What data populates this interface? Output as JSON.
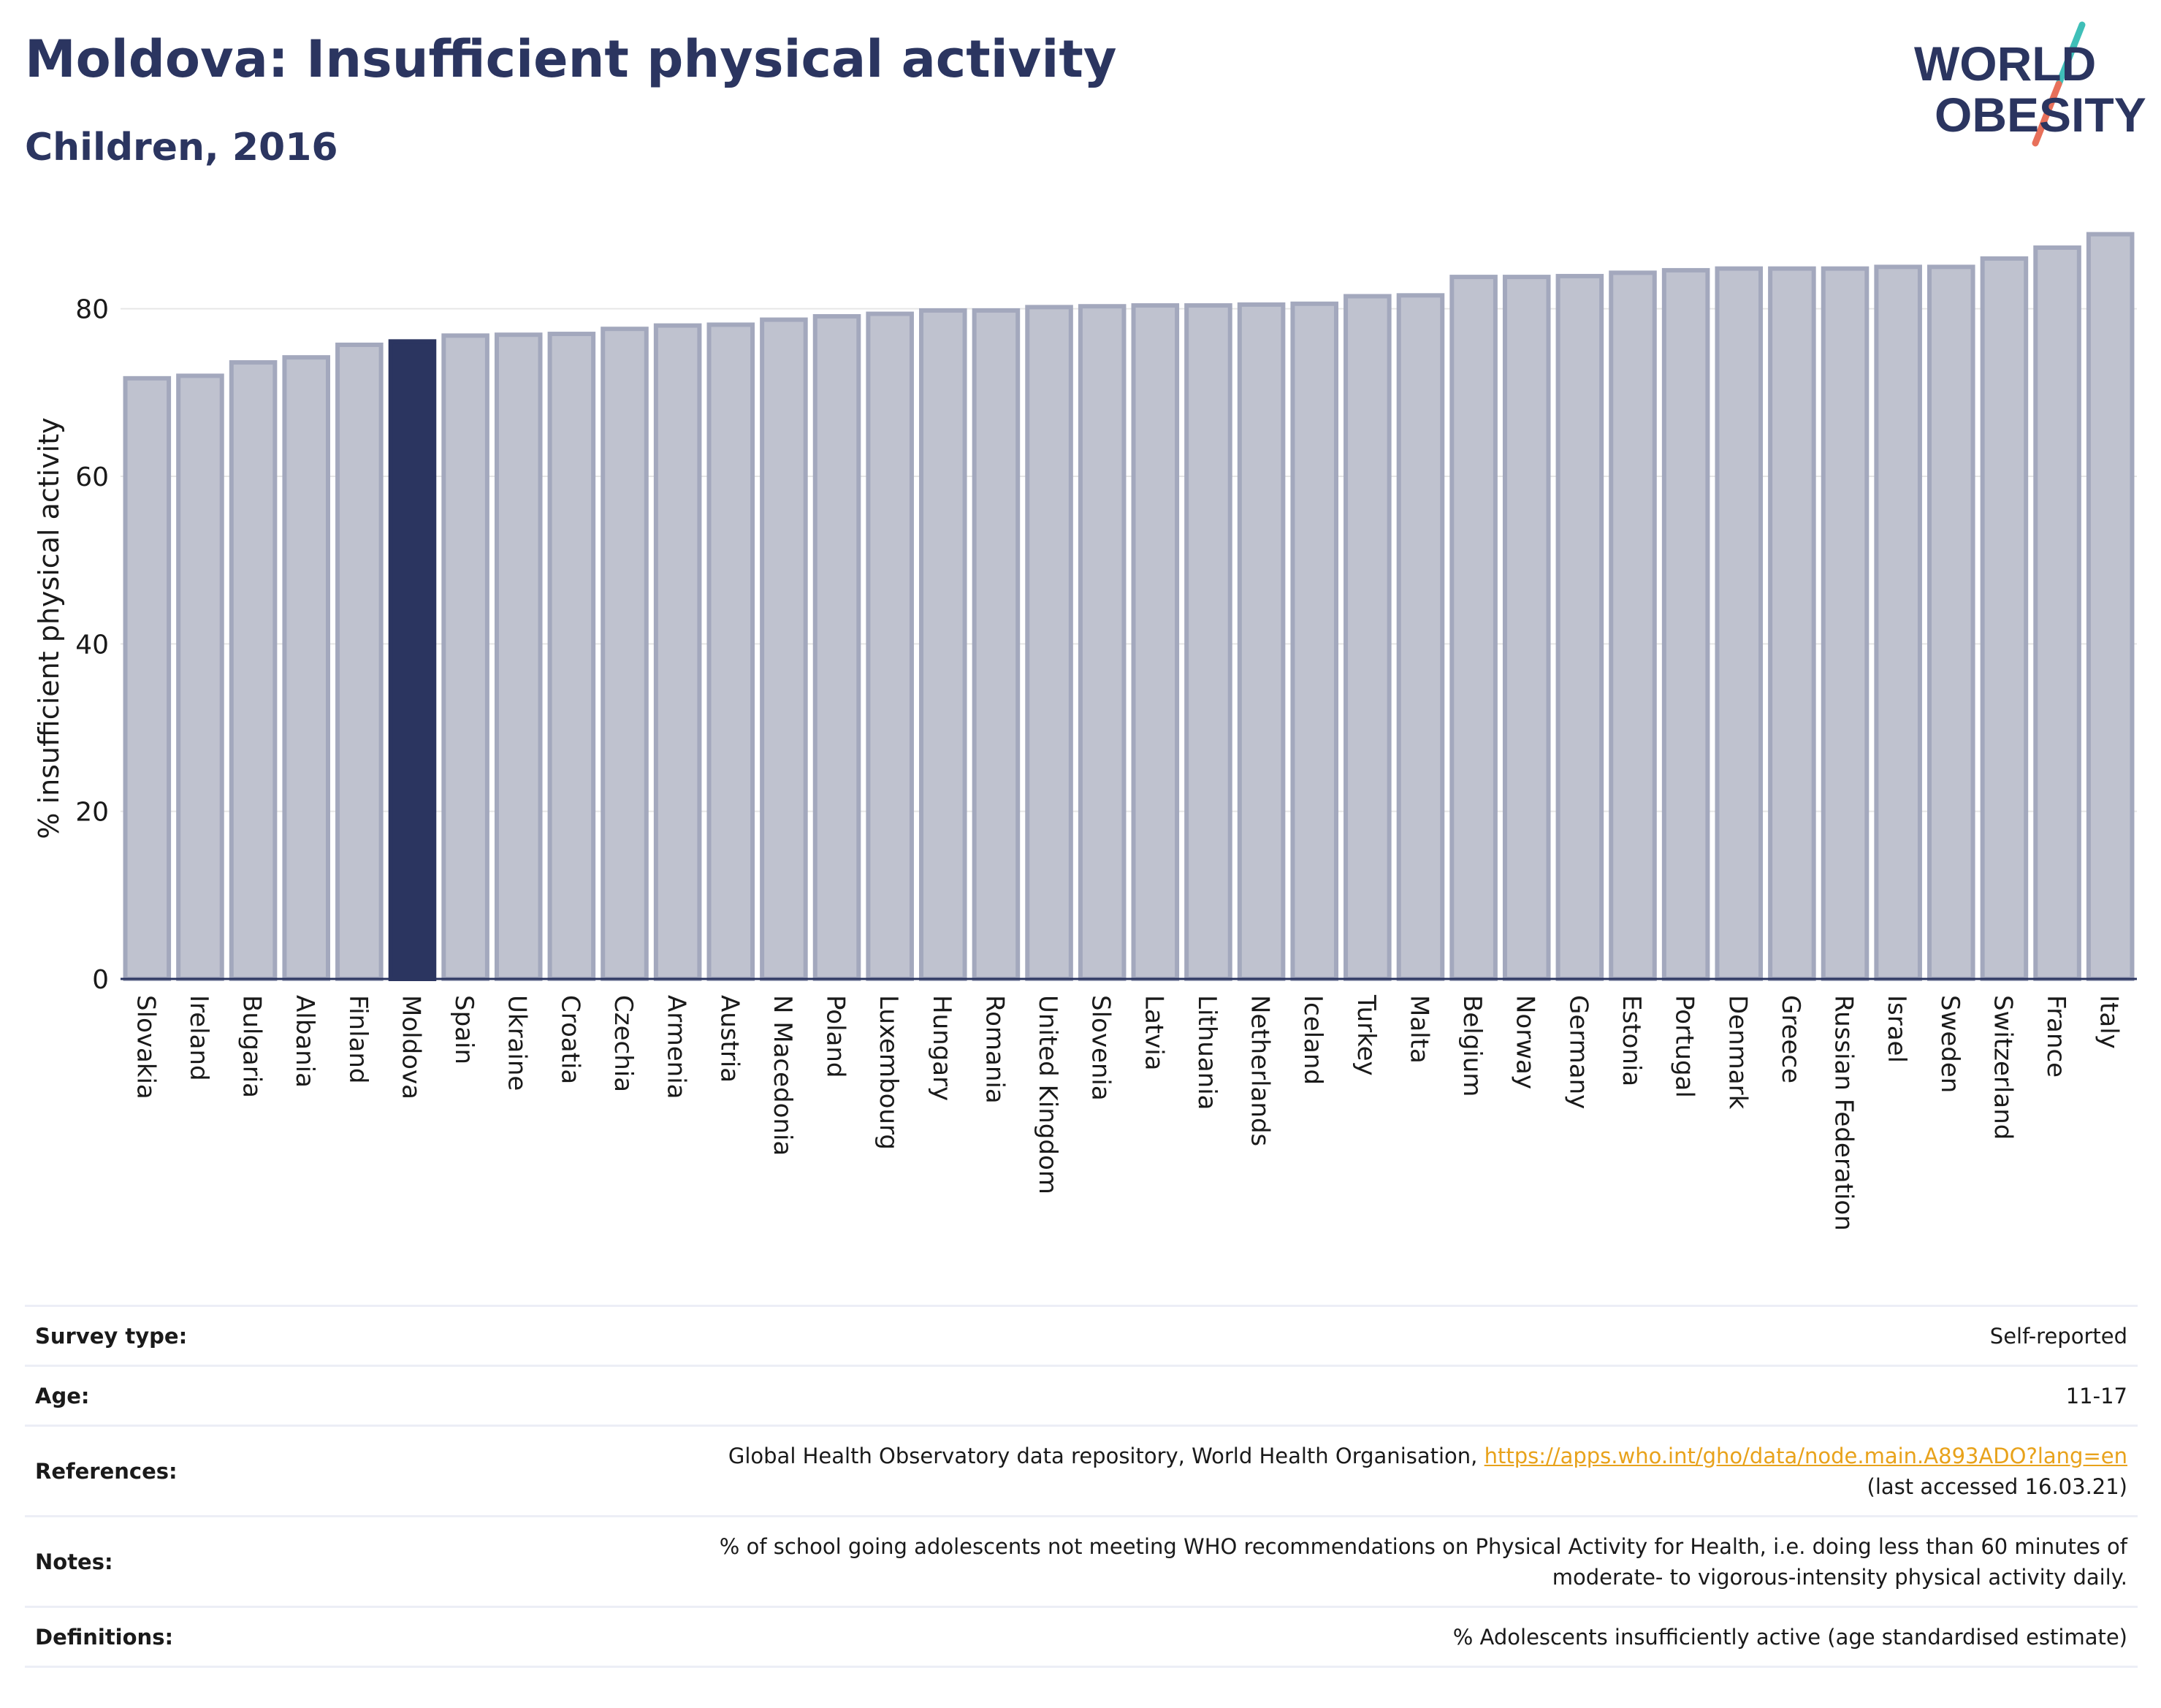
{
  "header": {
    "title": "Moldova: Insufficient physical activity",
    "subtitle": "Children, 2016"
  },
  "logo": {
    "line1": "WORLD",
    "line2": "OBESITY",
    "colors": {
      "text": "#2b3560",
      "slash_top": "#3fbfb8",
      "slash_bottom": "#e8705a"
    }
  },
  "chart_data": {
    "type": "bar",
    "ylabel": "% insufficient physical activity",
    "ylim": [
      0,
      90
    ],
    "yticks": [
      0,
      20,
      40,
      60,
      80
    ],
    "grid": true,
    "highlight": "Moldova",
    "colors": {
      "bar": "#bfc2cf",
      "bar_edge": "#a3a8bd",
      "highlight": "#2b3560",
      "axis": "#2b3560",
      "grid": "#e6e6e6"
    },
    "categories": [
      "Slovakia",
      "Ireland",
      "Bulgaria",
      "Albania",
      "Finland",
      "Moldova",
      "Spain",
      "Ukraine",
      "Croatia",
      "Czechia",
      "Armenia",
      "Austria",
      "N Macedonia",
      "Poland",
      "Luxembourg",
      "Hungary",
      "Romania",
      "United Kingdom",
      "Slovenia",
      "Latvia",
      "Lithuania",
      "Netherlands",
      "Iceland",
      "Turkey",
      "Malta",
      "Belgium",
      "Norway",
      "Germany",
      "Estonia",
      "Portugal",
      "Denmark",
      "Greece",
      "Russian Federation",
      "Israel",
      "Sweden",
      "Switzerland",
      "France",
      "Italy"
    ],
    "values": [
      71.7,
      72.0,
      73.6,
      74.2,
      75.7,
      76.1,
      76.8,
      76.9,
      77.0,
      77.6,
      78.0,
      78.1,
      78.7,
      79.1,
      79.4,
      79.8,
      79.8,
      80.2,
      80.3,
      80.4,
      80.4,
      80.5,
      80.6,
      81.5,
      81.6,
      83.8,
      83.8,
      83.9,
      84.3,
      84.6,
      84.8,
      84.8,
      84.8,
      85.0,
      85.0,
      86.0,
      87.3,
      88.9
    ]
  },
  "info": [
    {
      "label": "Survey type:",
      "value": "Self-reported"
    },
    {
      "label": "Age:",
      "value": "11-17"
    },
    {
      "label": "References:",
      "value": "Global Health Observatory data repository, World Health Organisation,",
      "link": "https://apps.who.int/gho/data/node.main.A893ADO?lang=en",
      "value2": "(last accessed 16.03.21)"
    },
    {
      "label": "Notes:",
      "value": "% of school going adolescents not meeting WHO recommendations on Physical Activity for Health, i.e. doing less than 60 minutes of",
      "value2": "moderate- to vigorous-intensity physical activity daily."
    },
    {
      "label": "Definitions:",
      "value": "% Adolescents insufficiently active (age standardised estimate)"
    }
  ]
}
